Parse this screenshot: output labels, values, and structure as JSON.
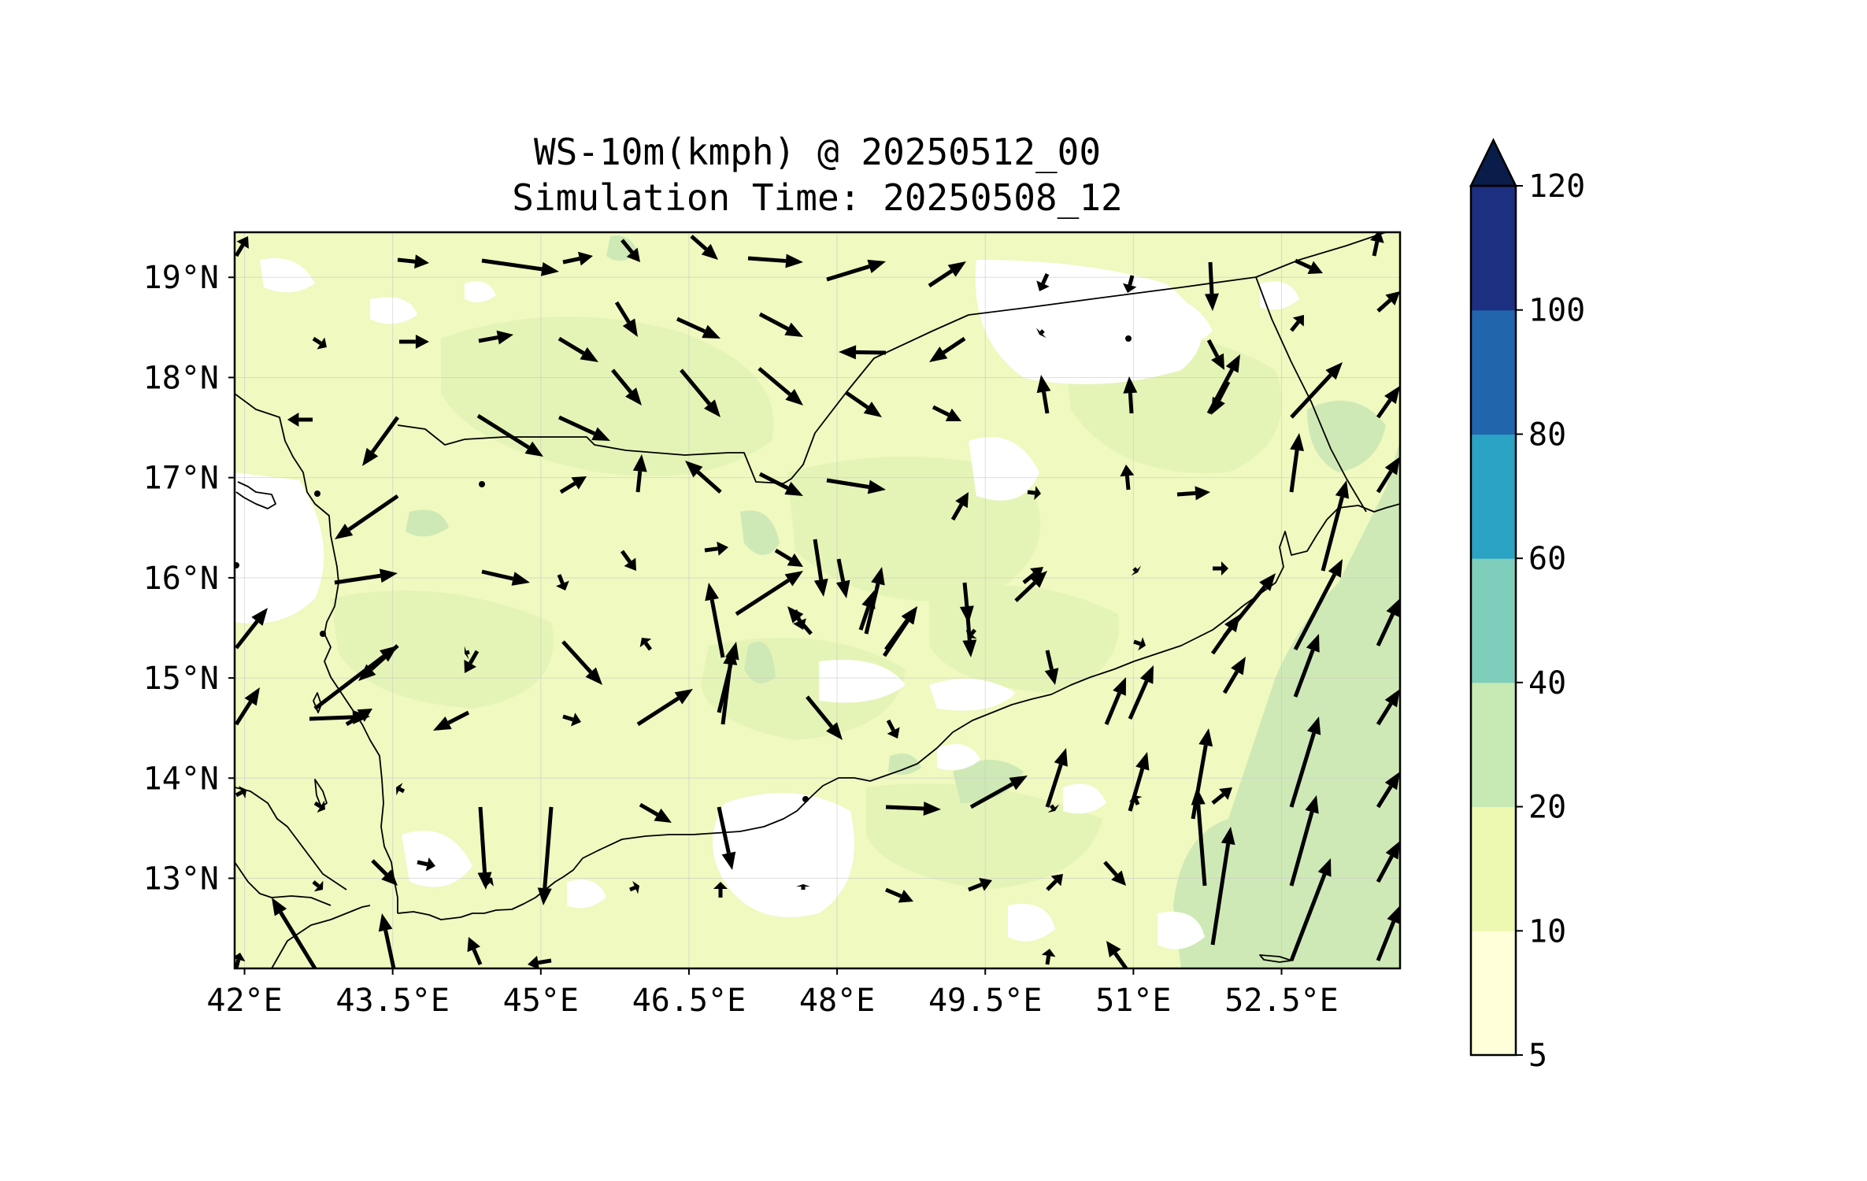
{
  "title": {
    "line1": "WS-10m(kmph) @ 20250512_00",
    "line2": "Simulation Time: 20250508_12"
  },
  "map": {
    "xticks": [
      {
        "lon": 42.0,
        "label": "42°E"
      },
      {
        "lon": 43.5,
        "label": "43.5°E"
      },
      {
        "lon": 45.0,
        "label": "45°E"
      },
      {
        "lon": 46.5,
        "label": "46.5°E"
      },
      {
        "lon": 48.0,
        "label": "48°E"
      },
      {
        "lon": 49.5,
        "label": "49.5°E"
      },
      {
        "lon": 51.0,
        "label": "51°E"
      },
      {
        "lon": 52.5,
        "label": "52.5°E"
      }
    ],
    "yticks": [
      {
        "lat": 19,
        "label": "19°N"
      },
      {
        "lat": 18,
        "label": "18°N"
      },
      {
        "lat": 17,
        "label": "17°N"
      },
      {
        "lat": 16,
        "label": "16°N"
      },
      {
        "lat": 15,
        "label": "15°N"
      },
      {
        "lat": 14,
        "label": "14°N"
      },
      {
        "lat": 13,
        "label": "13°N"
      }
    ],
    "lon_range": [
      41.9,
      53.7
    ],
    "lat_range": [
      12.1,
      19.45
    ],
    "gridlines": true
  },
  "colorbar": {
    "levels": [
      5,
      10,
      20,
      40,
      60,
      80,
      100,
      120
    ],
    "labels": [
      "5",
      "10",
      "20",
      "40",
      "60",
      "80",
      "100",
      "120"
    ],
    "colors": [
      "#ffffd9",
      "#edf8b1",
      "#c7e9b4",
      "#7fcdbb",
      "#2aa3c4",
      "#2165ac",
      "#1d2f80"
    ],
    "extend_color": "#0a1d4a",
    "extend": "max"
  },
  "colors": {
    "land_light": "#f0f9c0",
    "land_mid": "#e3f3b4",
    "patch_green": "#cfe9b6",
    "calm_white": "#ffffff",
    "coast": "#000000",
    "arrow": "#000000"
  }
}
